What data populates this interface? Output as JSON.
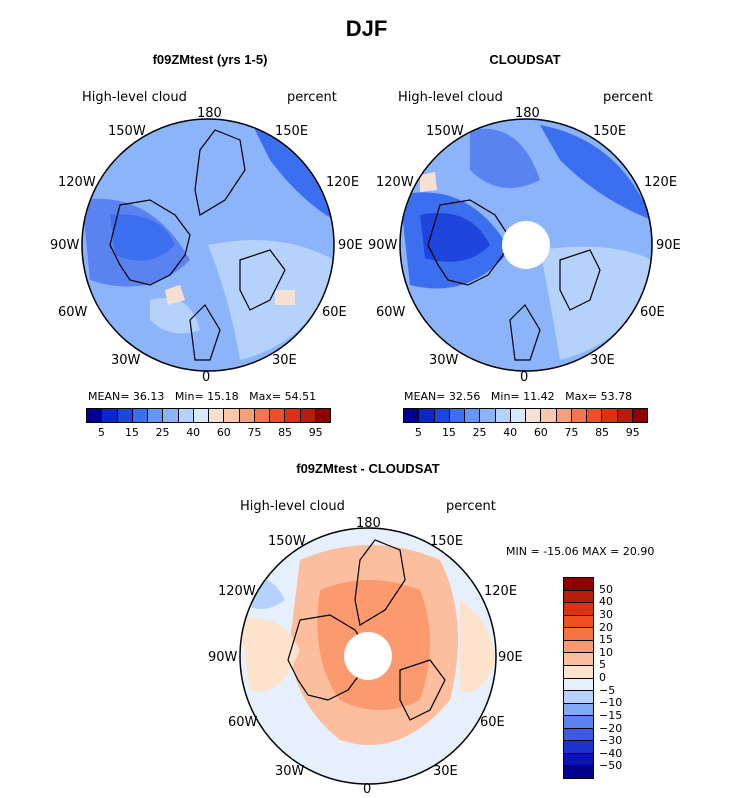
{
  "title": "DJF",
  "variable": "High-level cloud",
  "units": "percent",
  "panels": [
    {
      "id": "model",
      "title": "f09ZMtest (yrs 1-5)",
      "mean_label": "MEAN=",
      "mean": "36.13",
      "min_label": "Min=",
      "min": "15.18",
      "max_label": "Max=",
      "max": "54.51"
    },
    {
      "id": "obs",
      "title": "CLOUDSAT",
      "mean_label": "MEAN=",
      "mean": "32.56",
      "min_label": "Min=",
      "min": "11.42",
      "max_label": "Max=",
      "max": "53.78"
    }
  ],
  "diff": {
    "title": "f09ZMtest - CLOUDSAT",
    "minmax_text": "MIN = -15.06 MAX =  20.90"
  },
  "longitude_labels": {
    "n": "180",
    "s": "0",
    "e": "90E",
    "w": "90W",
    "ne1": "150E",
    "ne2": "120E",
    "se1": "60E",
    "se2": "30E",
    "nw1": "150W",
    "nw2": "120W",
    "sw1": "60W",
    "sw2": "30W"
  },
  "colorbar_abs": {
    "ticks": [
      "5",
      "15",
      "25",
      "40",
      "60",
      "75",
      "85",
      "95"
    ],
    "colors": [
      "#00008c",
      "#0a28c8",
      "#1e46dc",
      "#3c6ef0",
      "#6496f5",
      "#8cb4fa",
      "#b4d2fc",
      "#d7e8fc",
      "#f5e1d2",
      "#fac8aa",
      "#f5a078",
      "#f07850",
      "#eb5028",
      "#dc3214",
      "#b41e0a",
      "#8c0000"
    ]
  },
  "colorbar_diff": {
    "ticks": [
      "50",
      "40",
      "30",
      "20",
      "15",
      "10",
      "5",
      "0",
      "−5",
      "−10",
      "−15",
      "−20",
      "−30",
      "−40",
      "−50"
    ],
    "colors": [
      "#8c0000",
      "#b41e0a",
      "#dc3214",
      "#f0501e",
      "#f57346",
      "#fa9a6e",
      "#fcbe9c",
      "#fde2cc",
      "#e6f0fc",
      "#b4d2fc",
      "#82aaf8",
      "#5a82f0",
      "#3c5ae6",
      "#1e32d2",
      "#0a14b4",
      "#00008c"
    ]
  },
  "map_colors": {
    "model_base": "#8cb4fa",
    "obs_base": "#8cb4fa",
    "diff_base": "#fde2cc",
    "pole_hole": "#ffffff"
  }
}
